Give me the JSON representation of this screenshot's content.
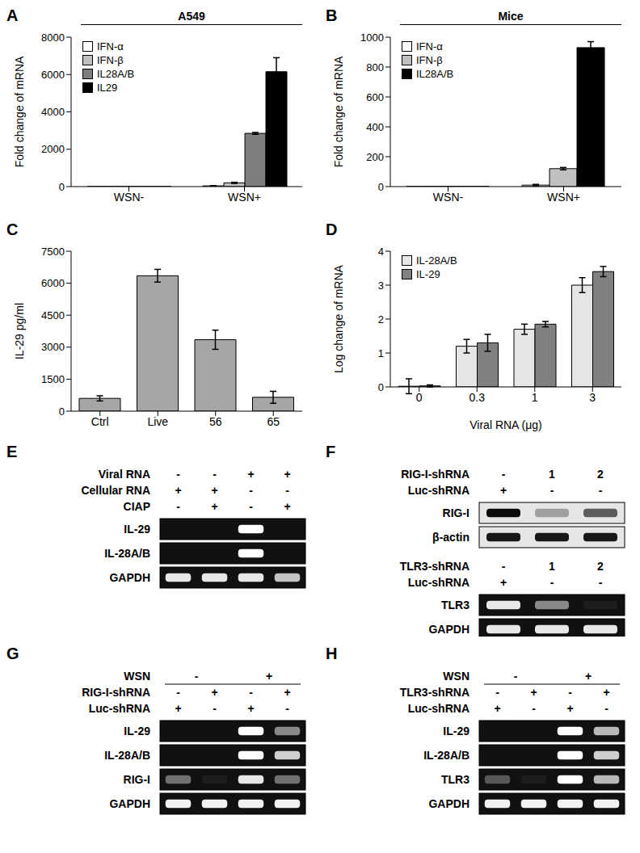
{
  "chart_data": [
    {
      "panel": "A",
      "type": "bar",
      "title": "A549",
      "y_label": "Fold change of mRNA",
      "categories": [
        "WSN-",
        "WSN+"
      ],
      "series": [
        {
          "name": "IFN-α",
          "color": "#ffffff",
          "values": [
            1,
            40
          ],
          "errors": [
            0,
            8
          ]
        },
        {
          "name": "IFN-β",
          "color": "#c0c0c0",
          "values": [
            1,
            200
          ],
          "errors": [
            0,
            30
          ]
        },
        {
          "name": "IL28A/B",
          "color": "#7f7f7f",
          "values": [
            1,
            2850
          ],
          "errors": [
            0,
            50
          ]
        },
        {
          "name": "IL29",
          "color": "#000000",
          "values": [
            1,
            6150
          ],
          "errors": [
            0,
            750
          ]
        }
      ],
      "ylim": [
        0,
        8000
      ],
      "yticks": [
        0,
        2000,
        4000,
        6000,
        8000
      ],
      "legend": "upper left"
    },
    {
      "panel": "B",
      "type": "bar",
      "title": "Mice",
      "y_label": "Fold change of mRNA",
      "categories": [
        "WSN-",
        "WSN+"
      ],
      "series": [
        {
          "name": "IFN-α",
          "color": "#ffffff",
          "values": [
            1,
            10
          ],
          "errors": [
            0,
            5
          ]
        },
        {
          "name": "IFN-β",
          "color": "#c0c0c0",
          "values": [
            1,
            120
          ],
          "errors": [
            0,
            8
          ]
        },
        {
          "name": "IL28A/B",
          "color": "#000000",
          "values": [
            1,
            930
          ],
          "errors": [
            0,
            40
          ]
        }
      ],
      "ylim": [
        0,
        1000
      ],
      "yticks": [
        0,
        200,
        400,
        600,
        800,
        1000
      ],
      "legend": "upper left"
    },
    {
      "panel": "C",
      "type": "bar",
      "y_label": "IL-29  pg/ml",
      "categories": [
        "Ctrl",
        "Live",
        "56",
        "65"
      ],
      "color": "#a6a6a6",
      "values": [
        600,
        6350,
        3350,
        650
      ],
      "errors": [
        120,
        300,
        450,
        280
      ],
      "ylim": [
        0,
        7500
      ],
      "yticks": [
        0,
        1500,
        3000,
        4500,
        6000,
        7500
      ]
    },
    {
      "panel": "D",
      "type": "bar",
      "y_label": "Log change of mRNA",
      "x_label": "Viral RNA (μg)",
      "categories": [
        "0",
        "0.3",
        "1",
        "3"
      ],
      "series": [
        {
          "name": "IL-28A/B",
          "color": "#e6e6e6",
          "values": [
            0.02,
            1.2,
            1.7,
            3.0
          ],
          "errors": [
            0.22,
            0.2,
            0.15,
            0.22
          ]
        },
        {
          "name": "IL-29",
          "color": "#808080",
          "values": [
            0.03,
            1.3,
            1.85,
            3.4
          ],
          "errors": [
            0.03,
            0.25,
            0.08,
            0.15
          ]
        }
      ],
      "ylim": [
        0,
        4
      ],
      "yticks": [
        0,
        1,
        2,
        3,
        4
      ],
      "legend": "upper left"
    }
  ],
  "gels": [
    {
      "panel": "E",
      "blots": [
        {
          "kind": "pcr",
          "headers": [
            {
              "label": "Viral RNA",
              "values": [
                "-",
                "-",
                "+",
                "+"
              ]
            },
            {
              "label": "Cellular RNA",
              "values": [
                "+",
                "+",
                "-",
                "-"
              ]
            },
            {
              "label": "CIAP",
              "values": [
                "-",
                "+",
                "-",
                "+"
              ]
            }
          ],
          "bands": [
            {
              "label": "IL-29",
              "intensity": [
                0,
                0,
                1,
                0
              ]
            },
            {
              "label": "IL-28A/B",
              "intensity": [
                0,
                0,
                1,
                0
              ]
            },
            {
              "label": "GAPDH",
              "intensity": [
                0.9,
                0.9,
                0.9,
                0.75
              ]
            }
          ]
        }
      ]
    },
    {
      "panel": "F",
      "blots": [
        {
          "kind": "western",
          "headers": [
            {
              "label": "RIG-I-shRNA",
              "values": [
                "-",
                "1",
                "2"
              ]
            },
            {
              "label": "Luc-shRNA",
              "values": [
                "+",
                "-",
                "-"
              ]
            }
          ],
          "bands": [
            {
              "label": "RIG-I",
              "intensity": [
                0.95,
                0.3,
                0.6
              ]
            },
            {
              "label": "β-actin",
              "intensity": [
                0.9,
                0.9,
                0.9
              ]
            }
          ]
        },
        {
          "kind": "pcr",
          "headers": [
            {
              "label": "TLR3-shRNA",
              "values": [
                "-",
                "1",
                "2"
              ]
            },
            {
              "label": "Luc-shRNA",
              "values": [
                "+",
                "-",
                "-"
              ]
            }
          ],
          "bands": [
            {
              "label": "TLR3",
              "intensity": [
                0.9,
                0.5,
                0.05
              ]
            },
            {
              "label": "GAPDH",
              "intensity": [
                0.9,
                0.9,
                0.9
              ]
            }
          ]
        }
      ]
    },
    {
      "panel": "G",
      "blots": [
        {
          "kind": "pcr",
          "headers": [
            {
              "label": "WSN",
              "values": [
                "-",
                "+"
              ]
            },
            {
              "label": "RIG-I-shRNA",
              "values": [
                "-",
                "+",
                "-",
                "+"
              ]
            },
            {
              "label": "Luc-shRNA",
              "values": [
                "+",
                "-",
                "+",
                "-"
              ]
            }
          ],
          "bands": [
            {
              "label": "IL-29",
              "intensity": [
                0,
                0,
                1,
                0.5
              ]
            },
            {
              "label": "IL-28A/B",
              "intensity": [
                0,
                0,
                1,
                0.8
              ]
            },
            {
              "label": "RIG-I",
              "intensity": [
                0.4,
                0.05,
                0.9,
                0.4
              ]
            },
            {
              "label": "GAPDH",
              "intensity": [
                0.95,
                0.95,
                0.95,
                0.95
              ]
            }
          ]
        }
      ]
    },
    {
      "panel": "H",
      "blots": [
        {
          "kind": "pcr",
          "headers": [
            {
              "label": "WSN",
              "values": [
                "-",
                "+"
              ]
            },
            {
              "label": "TLR3-shRNA",
              "values": [
                "-",
                "+",
                "-",
                "+"
              ]
            },
            {
              "label": "Luc-shRNA",
              "values": [
                "+",
                "-",
                "+",
                "-"
              ]
            }
          ],
          "bands": [
            {
              "label": "IL-29",
              "intensity": [
                0,
                0,
                1,
                0.7
              ]
            },
            {
              "label": "IL-28A/B",
              "intensity": [
                0,
                0,
                1,
                0.8
              ]
            },
            {
              "label": "TLR3",
              "intensity": [
                0.3,
                0.05,
                1,
                0.7
              ]
            },
            {
              "label": "GAPDH",
              "intensity": [
                0.95,
                0.95,
                0.95,
                0.95
              ]
            }
          ]
        }
      ]
    }
  ]
}
